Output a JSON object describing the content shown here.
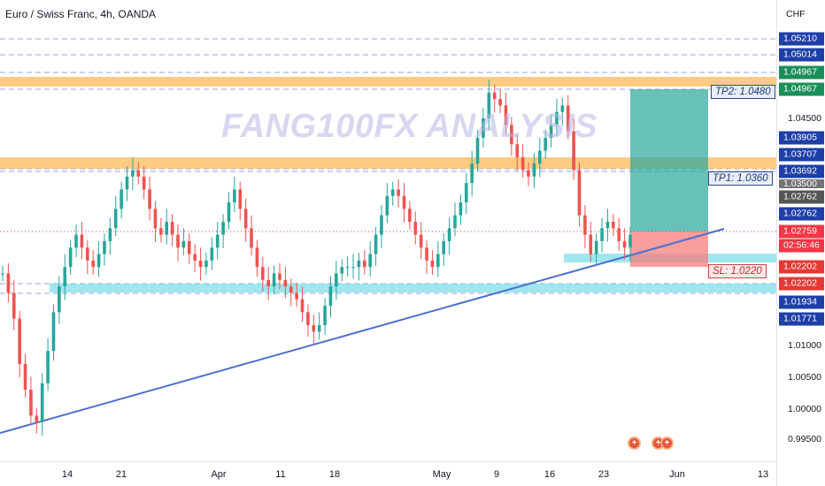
{
  "symbol": {
    "title": "Euro / Swiss Franc, 4h, OANDA"
  },
  "watermark": {
    "text": "FANG100FX ANALYSIS"
  },
  "price_scale": {
    "currency": "CHF",
    "ticks": [
      "1.04500",
      "1.01000",
      "1.00500",
      "1.00000",
      "0.99500"
    ],
    "labels": [
      {
        "text": "1.05210",
        "color": "#1e3fa8"
      },
      {
        "text": "1.05014",
        "color": "#1e3fa8"
      },
      {
        "text": "1.04967",
        "color": "#1b8f5a"
      },
      {
        "text": "1.04967",
        "color": "#1b8f5a"
      },
      {
        "text": "1.03905",
        "color": "#1e3fa8"
      },
      {
        "text": "1.03707",
        "color": "#1e3fa8"
      },
      {
        "text": "1.03692",
        "color": "#1e3fa8"
      },
      {
        "text": "1.03500",
        "color": "#737373"
      },
      {
        "text": "1.02762",
        "color": "#555555"
      },
      {
        "text": "1.02762",
        "color": "#1e3fa8"
      },
      {
        "text": "1.02759",
        "color": "#f23645"
      },
      {
        "text": "02:56:46",
        "color": "#f23645"
      },
      {
        "text": "1.02202",
        "color": "#e53935"
      },
      {
        "text": "1.02202",
        "color": "#e53935"
      },
      {
        "text": "1.01934",
        "color": "#1e3fa8"
      },
      {
        "text": "1.01771",
        "color": "#1e3fa8"
      }
    ]
  },
  "time_axis": {
    "ticks": [
      "14",
      "21",
      "Apr",
      "11",
      "18",
      "May",
      "9",
      "16",
      "23",
      "Jun",
      "13"
    ]
  },
  "annotations": {
    "tp2": "TP2: 1.0480",
    "tp1": "TP1: 1.0360",
    "sl": "SL: 1.0220"
  },
  "colors": {
    "up": "#26a69a",
    "down": "#ef5350",
    "zone_orange": "#ffb74d",
    "zone_cyan": "#80deea",
    "trendline": "#4a6fd1",
    "target": "#26a69a",
    "stop": "#f77c7c"
  },
  "chart_data": {
    "type": "candlestick",
    "symbol": "EURCHF",
    "timeframe": "4h",
    "current_price": 1.02759,
    "close_prices": [
      1.021,
      1.018,
      1.014,
      1.007,
      1.003,
      0.999,
      0.998,
      1.004,
      1.009,
      1.015,
      1.019,
      1.022,
      1.025,
      1.027,
      1.025,
      1.023,
      1.022,
      1.024,
      1.026,
      1.028,
      1.031,
      1.034,
      1.036,
      1.037,
      1.036,
      1.034,
      1.031,
      1.028,
      1.027,
      1.029,
      1.027,
      1.025,
      1.026,
      1.024,
      1.023,
      1.022,
      1.023,
      1.025,
      1.027,
      1.029,
      1.032,
      1.034,
      1.031,
      1.028,
      1.025,
      1.022,
      1.02,
      1.019,
      1.021,
      1.02,
      1.019,
      1.018,
      1.017,
      1.015,
      1.013,
      1.012,
      1.013,
      1.016,
      1.019,
      1.021,
      1.022,
      1.022,
      1.022,
      1.023,
      1.022,
      1.024,
      1.027,
      1.03,
      1.033,
      1.034,
      1.033,
      1.031,
      1.029,
      1.027,
      1.025,
      1.023,
      1.022,
      1.024,
      1.026,
      1.028,
      1.03,
      1.032,
      1.035,
      1.038,
      1.042,
      1.045,
      1.049,
      1.048,
      1.047,
      1.044,
      1.041,
      1.039,
      1.037,
      1.036,
      1.038,
      1.04,
      1.042,
      1.044,
      1.046,
      1.047,
      1.043,
      1.037,
      1.03,
      1.027,
      1.024,
      1.026,
      1.028,
      1.029,
      1.028,
      1.026,
      1.025,
      1.027
    ]
  }
}
